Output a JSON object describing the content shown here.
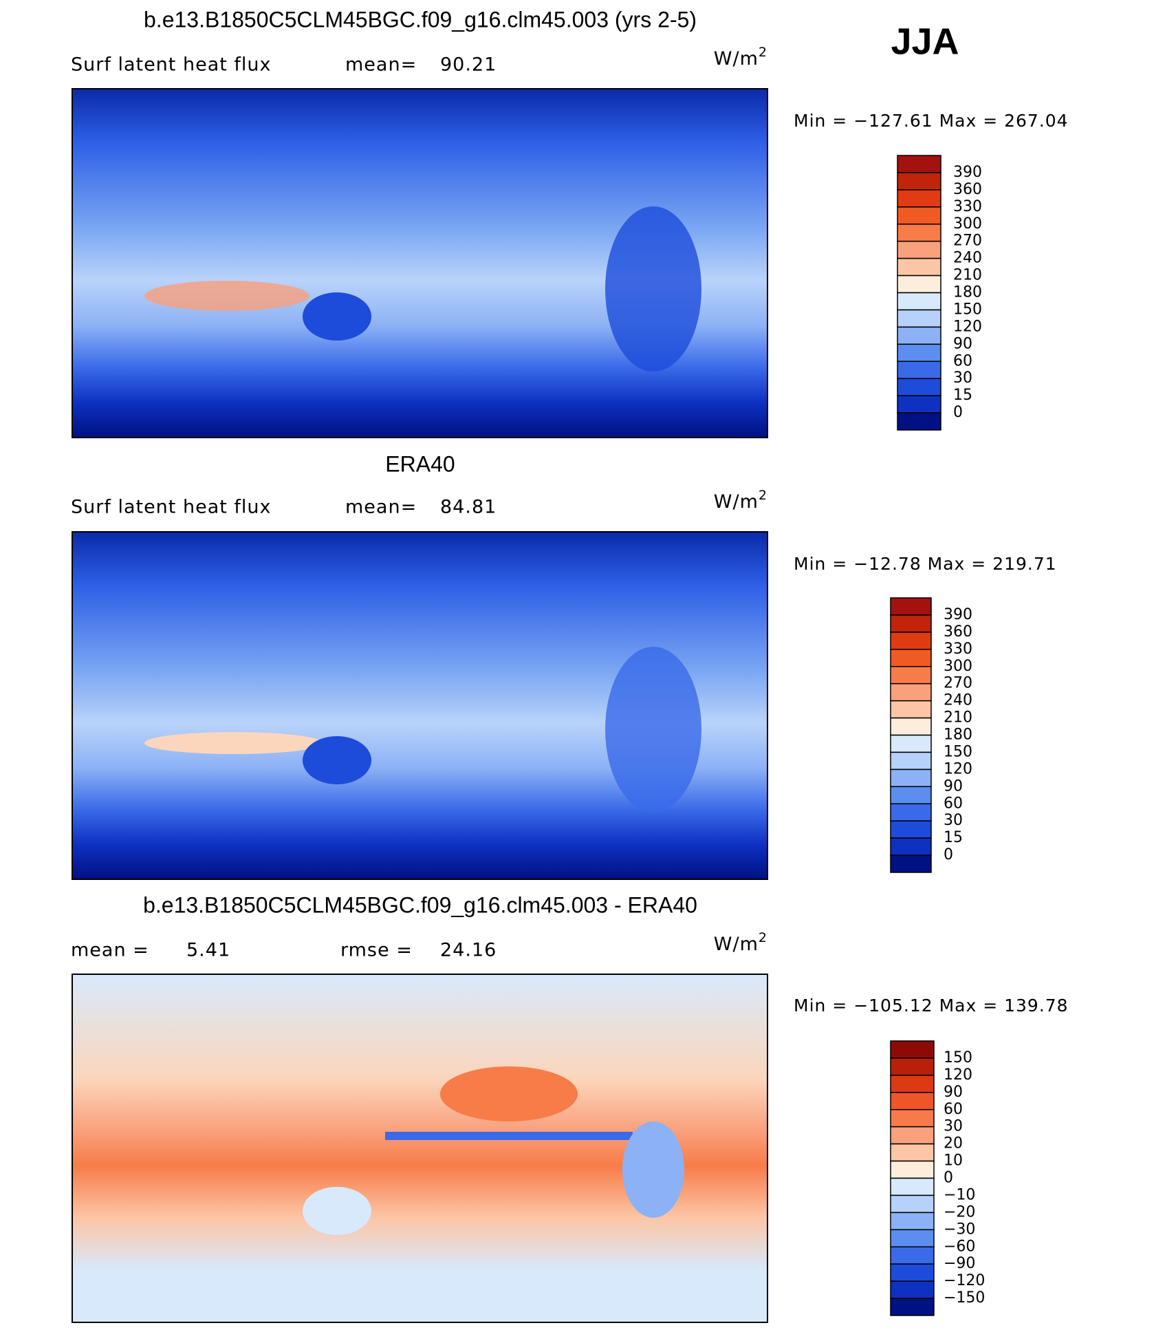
{
  "header": {
    "season": "JJA"
  },
  "panels": [
    {
      "title": "b.e13.B1850C5CLM45BGC.f09_g16.clm45.003 (yrs 2-5)",
      "left_label": "Surf latent heat flux",
      "mid_label": "mean=",
      "mid_value": "90.21",
      "units": "W/m",
      "units_sup": "2",
      "min_max": "Min = −127.61 Max = 267.04",
      "colorbar": {
        "labels": [
          "390",
          "360",
          "330",
          "300",
          "270",
          "240",
          "210",
          "180",
          "150",
          "120",
          "90",
          "60",
          "30",
          "15",
          "0"
        ],
        "colors": [
          "#a3120e",
          "#c2230b",
          "#e03b12",
          "#f25a24",
          "#f77c48",
          "#f9a07c",
          "#fcc6a6",
          "#fdeedc",
          "#d8e9fc",
          "#b6d1fa",
          "#8cb1f5",
          "#5c8ef0",
          "#3a6ae8",
          "#1d4cdb",
          "#0e31c2",
          "#001183"
        ]
      }
    },
    {
      "title": "ERA40",
      "left_label": "Surf latent heat flux",
      "mid_label": "mean=",
      "mid_value": "84.81",
      "units": "W/m",
      "units_sup": "2",
      "min_max": "Min = −12.78 Max = 219.71",
      "colorbar": {
        "labels": [
          "390",
          "360",
          "330",
          "300",
          "270",
          "240",
          "210",
          "180",
          "150",
          "120",
          "90",
          "60",
          "30",
          "15",
          "0"
        ],
        "colors": [
          "#a3120e",
          "#c2230b",
          "#e03b12",
          "#f25a24",
          "#f77c48",
          "#f9a07c",
          "#fcc6a6",
          "#fdeedc",
          "#d8e9fc",
          "#b6d1fa",
          "#8cb1f5",
          "#5c8ef0",
          "#3a6ae8",
          "#1d4cdb",
          "#0e31c2",
          "#001183"
        ]
      }
    },
    {
      "title": "b.e13.B1850C5CLM45BGC.f09_g16.clm45.003 - ERA40",
      "left_label": "mean =",
      "left_value": "5.41",
      "mid_label": "rmse =",
      "mid_value": "24.16",
      "units": "W/m",
      "units_sup": "2",
      "min_max": "Min = −105.12 Max = 139.78",
      "colorbar": {
        "labels": [
          "150",
          "120",
          "90",
          "60",
          "30",
          "20",
          "10",
          "0",
          "−10",
          "−20",
          "−30",
          "−60",
          "−90",
          "−120",
          "−150"
        ],
        "colors": [
          "#8e0a06",
          "#b8200a",
          "#dc3a12",
          "#ef5526",
          "#f77b4a",
          "#f9a07c",
          "#fcc6a6",
          "#fdeedc",
          "#d8e9fc",
          "#b6d1fa",
          "#8cb1f5",
          "#5c8ef0",
          "#3a6ae8",
          "#1d4cdb",
          "#0e31c2",
          "#001183"
        ]
      }
    }
  ]
}
